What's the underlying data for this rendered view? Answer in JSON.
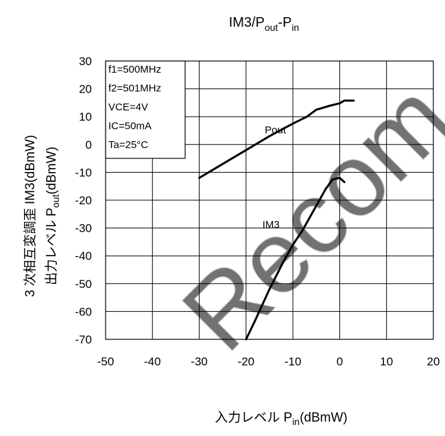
{
  "chart_data": {
    "type": "line",
    "title": {
      "main": "IM3/P",
      "sub1": "out",
      "mid": "-P",
      "sub2": "in"
    },
    "xlabel": {
      "main": "入力レベル  P",
      "sub": "in",
      "tail": "(dBmW)"
    },
    "ylabel_outer": "3 次相互変調歪  IM3(dBmW)",
    "ylabel_inner": {
      "main": "出力レベル  P",
      "sub": "out",
      "tail": "(dBmW)"
    },
    "xlim": [
      -50,
      20
    ],
    "ylim": [
      -70,
      30
    ],
    "xticks": [
      "-50",
      "-40",
      "-30",
      "-20",
      "-10",
      "0",
      "10",
      "20"
    ],
    "yticks": [
      "30",
      "20",
      "10",
      "0",
      "-10",
      "-20",
      "-30",
      "-40",
      "-50",
      "-60",
      "-70"
    ],
    "grid": true,
    "conditions": [
      "f1=500MHz",
      "f2=501MHz",
      "VCE=4V",
      "IC=50mA",
      "Ta=25°C"
    ],
    "series": [
      {
        "name": "Pout",
        "points": [
          [
            -30,
            -12
          ],
          [
            -25,
            -7
          ],
          [
            -20,
            -2
          ],
          [
            -15,
            3
          ],
          [
            -10,
            7.5
          ],
          [
            -7,
            10
          ],
          [
            -5,
            12.5
          ],
          [
            -2,
            14
          ],
          [
            0,
            14.8
          ],
          [
            1,
            15.8
          ],
          [
            3,
            15.8
          ]
        ]
      },
      {
        "name": "IM3",
        "points": [
          [
            -20,
            -70
          ],
          [
            -18,
            -63
          ],
          [
            -15,
            -52
          ],
          [
            -12,
            -42
          ],
          [
            -10,
            -36
          ],
          [
            -8,
            -31
          ],
          [
            -5,
            -22
          ],
          [
            -3,
            -16
          ],
          [
            -1.5,
            -12.5
          ],
          [
            0,
            -12
          ],
          [
            1,
            -13.5
          ]
        ]
      }
    ]
  }
}
